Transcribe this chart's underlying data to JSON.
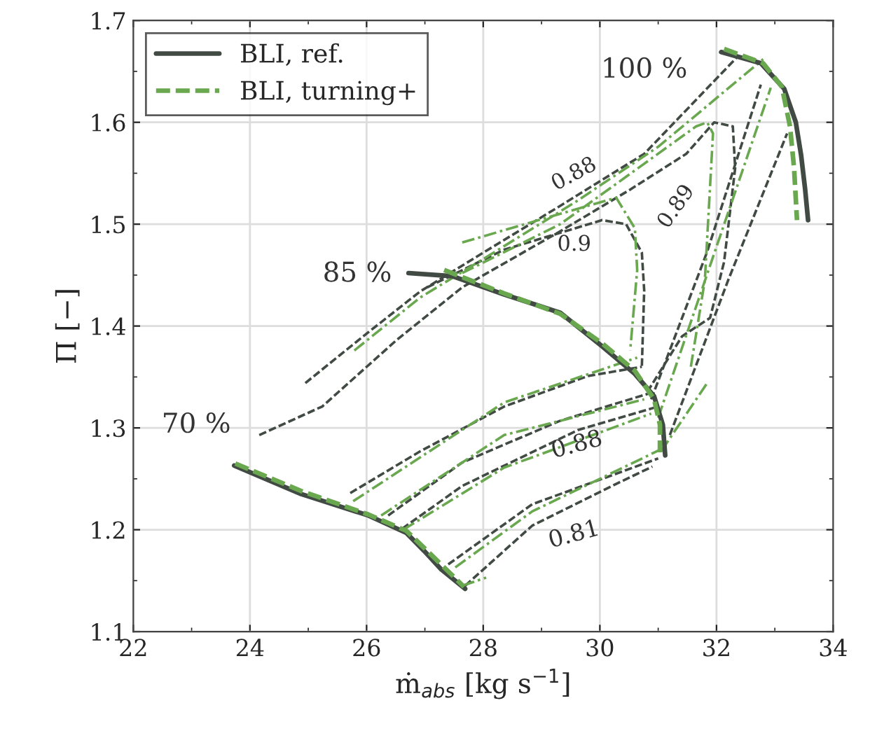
{
  "chart_data": {
    "type": "line",
    "xlabel": "ṁ$_{abs}$ [kg s$^{−1}$]",
    "ylabel": "Π [−]",
    "xlim": [
      22,
      34
    ],
    "xticks": [
      22,
      24,
      26,
      28,
      30,
      32,
      34
    ],
    "ylim": [
      1.1,
      1.7
    ],
    "yticks": [
      1.1,
      1.2,
      1.3,
      1.4,
      1.5,
      1.6,
      1.7
    ],
    "grid": true,
    "legend": "top left",
    "marker": "none",
    "series": [
      {
        "name": "BLI, ref.",
        "color": "#414b44",
        "line_style": "solid",
        "x": [
          32.08,
          32.76,
          33.16,
          33.36,
          33.45,
          33.52,
          33.57
        ],
        "values": [
          1.669,
          1.658,
          1.633,
          1.6,
          1.568,
          1.534,
          1.504
        ]
      },
      {
        "name": "BLI, turning+",
        "color": "#6aa84f",
        "line_style": "dashed",
        "x": [
          32.13,
          32.8,
          33.12,
          33.26,
          33.33,
          33.38
        ],
        "values": [
          1.672,
          1.658,
          1.635,
          1.596,
          1.555,
          1.504
        ]
      },
      {
        "color": "#414b44",
        "line_style": "solid",
        "x": [
          26.72,
          27.47,
          28.36,
          29.32,
          30.04,
          30.6,
          30.93,
          31.08,
          31.12
        ],
        "values": [
          1.452,
          1.449,
          1.431,
          1.413,
          1.38,
          1.353,
          1.331,
          1.303,
          1.273
        ]
      },
      {
        "color": "#6aa84f",
        "line_style": "dashed",
        "x": [
          27.33,
          28.36,
          29.32,
          30.04,
          30.6,
          30.93,
          31.03,
          31.03
        ],
        "values": [
          1.455,
          1.432,
          1.412,
          1.383,
          1.356,
          1.328,
          1.303,
          1.276
        ]
      },
      {
        "color": "#414b44",
        "line_style": "solid",
        "x": [
          23.73,
          24.88,
          26.03,
          26.68,
          26.99,
          27.28,
          27.69
        ],
        "values": [
          1.263,
          1.235,
          1.214,
          1.197,
          1.179,
          1.161,
          1.142
        ]
      },
      {
        "color": "#6aa84f",
        "line_style": "dashed",
        "x": [
          23.75,
          24.88,
          26.03,
          26.68,
          26.99,
          27.33,
          27.67
        ],
        "values": [
          1.265,
          1.238,
          1.215,
          1.199,
          1.182,
          1.163,
          1.144
        ]
      },
      {
        "color": "#414b44",
        "line_style": "dashed",
        "x": [
          24.95,
          26.01,
          26.92,
          28.0,
          29.32,
          30.76,
          32.37
        ],
        "values": [
          1.344,
          1.393,
          1.434,
          1.472,
          1.518,
          1.569,
          1.665
        ]
      },
      {
        "color": "#414b44",
        "line_style": "dashed",
        "x": [
          24.16,
          25.24,
          26.51,
          27.64,
          29.32,
          30.52,
          31.48,
          31.96,
          32.28,
          32.32,
          32.13,
          31.89,
          31.41,
          30.81
        ],
        "values": [
          1.293,
          1.321,
          1.386,
          1.438,
          1.493,
          1.534,
          1.569,
          1.6,
          1.596,
          1.555,
          1.463,
          1.408,
          1.39,
          1.335
        ]
      },
      {
        "color": "#414b44",
        "line_style": "dashed",
        "x": [
          27.04,
          28.36,
          30.04,
          30.45,
          30.72,
          30.76,
          30.72
        ],
        "values": [
          1.438,
          1.475,
          1.504,
          1.5,
          1.472,
          1.435,
          1.36
        ]
      },
      {
        "color": "#414b44",
        "line_style": "dashed",
        "x": [
          25.72,
          26.92,
          28.36,
          29.8,
          30.72
        ],
        "values": [
          1.236,
          1.277,
          1.321,
          1.351,
          1.36
        ]
      },
      {
        "color": "#414b44",
        "line_style": "dashed",
        "x": [
          26.37,
          27.64,
          29.32,
          30.91
        ],
        "values": [
          1.214,
          1.266,
          1.307,
          1.335
        ]
      },
      {
        "color": "#414b44",
        "line_style": "dashed",
        "x": [
          26.61,
          27.64,
          29.63,
          31.0
        ],
        "values": [
          1.201,
          1.243,
          1.298,
          1.321
        ]
      },
      {
        "color": "#414b44",
        "line_style": "dashed",
        "x": [
          27.4,
          28.84,
          31.0
        ],
        "values": [
          1.166,
          1.225,
          1.27
        ]
      },
      {
        "color": "#414b44",
        "line_style": "dashed",
        "x": [
          27.69,
          28.84,
          30.28,
          30.9
        ],
        "values": [
          1.145,
          1.204,
          1.245,
          1.262
        ]
      },
      {
        "color": "#414b44",
        "line_style": "dashed",
        "x": [
          31.2,
          32.2,
          33.21
        ],
        "values": [
          1.293,
          1.445,
          1.589
        ]
      },
      {
        "color": "#414b44",
        "line_style": "dashed",
        "x": [
          30.88,
          31.84,
          32.76
        ],
        "values": [
          1.328,
          1.473,
          1.637
        ]
      },
      {
        "color": "#6aa84f",
        "line_style": "dashdot",
        "x": [
          25.79,
          26.92,
          28.12,
          29.56,
          31.0,
          32.8
        ],
        "values": [
          1.376,
          1.428,
          1.47,
          1.521,
          1.576,
          1.662
        ]
      },
      {
        "color": "#6aa84f",
        "line_style": "dashdot",
        "x": [
          27.64,
          29.32,
          31.65,
          31.84,
          31.94,
          31.8,
          31.56
        ],
        "values": [
          1.452,
          1.5,
          1.596,
          1.6,
          1.589,
          1.445,
          1.36
        ]
      },
      {
        "color": "#6aa84f",
        "line_style": "dashdot",
        "x": [
          27.64,
          29.25,
          30.28,
          30.6,
          30.64,
          30.52
        ],
        "values": [
          1.482,
          1.509,
          1.526,
          1.496,
          1.455,
          1.376
        ]
      },
      {
        "color": "#6aa84f",
        "line_style": "dashdot",
        "x": [
          25.77,
          28.36,
          30.64
        ],
        "values": [
          1.228,
          1.325,
          1.369
        ]
      },
      {
        "color": "#6aa84f",
        "line_style": "dashdot",
        "x": [
          26.25,
          28.36,
          30.76
        ],
        "values": [
          1.214,
          1.293,
          1.328
        ]
      },
      {
        "color": "#6aa84f",
        "line_style": "dashdot",
        "x": [
          26.63,
          28.36,
          30.88
        ],
        "values": [
          1.2,
          1.261,
          1.314
        ]
      },
      {
        "color": "#6aa84f",
        "line_style": "dashdot",
        "x": [
          27.52,
          28.84,
          31.05
        ],
        "values": [
          1.163,
          1.218,
          1.279
        ]
      },
      {
        "color": "#6aa84f",
        "line_style": "dashdot",
        "x": [
          27.64,
          28.05
        ],
        "values": [
          1.145,
          1.153
        ]
      },
      {
        "color": "#6aa84f",
        "line_style": "dashdot",
        "x": [
          31.05,
          31.84
        ],
        "values": [
          1.277,
          1.344
        ]
      },
      {
        "color": "#6aa84f",
        "line_style": "dashdot",
        "x": [
          31.0,
          32.93
        ],
        "values": [
          1.31,
          1.634
        ]
      }
    ],
    "annotations": [
      "100 %",
      "85 %",
      "70 %",
      "0.88",
      "0.89",
      "0.9",
      "0.88",
      "0.81"
    ]
  }
}
